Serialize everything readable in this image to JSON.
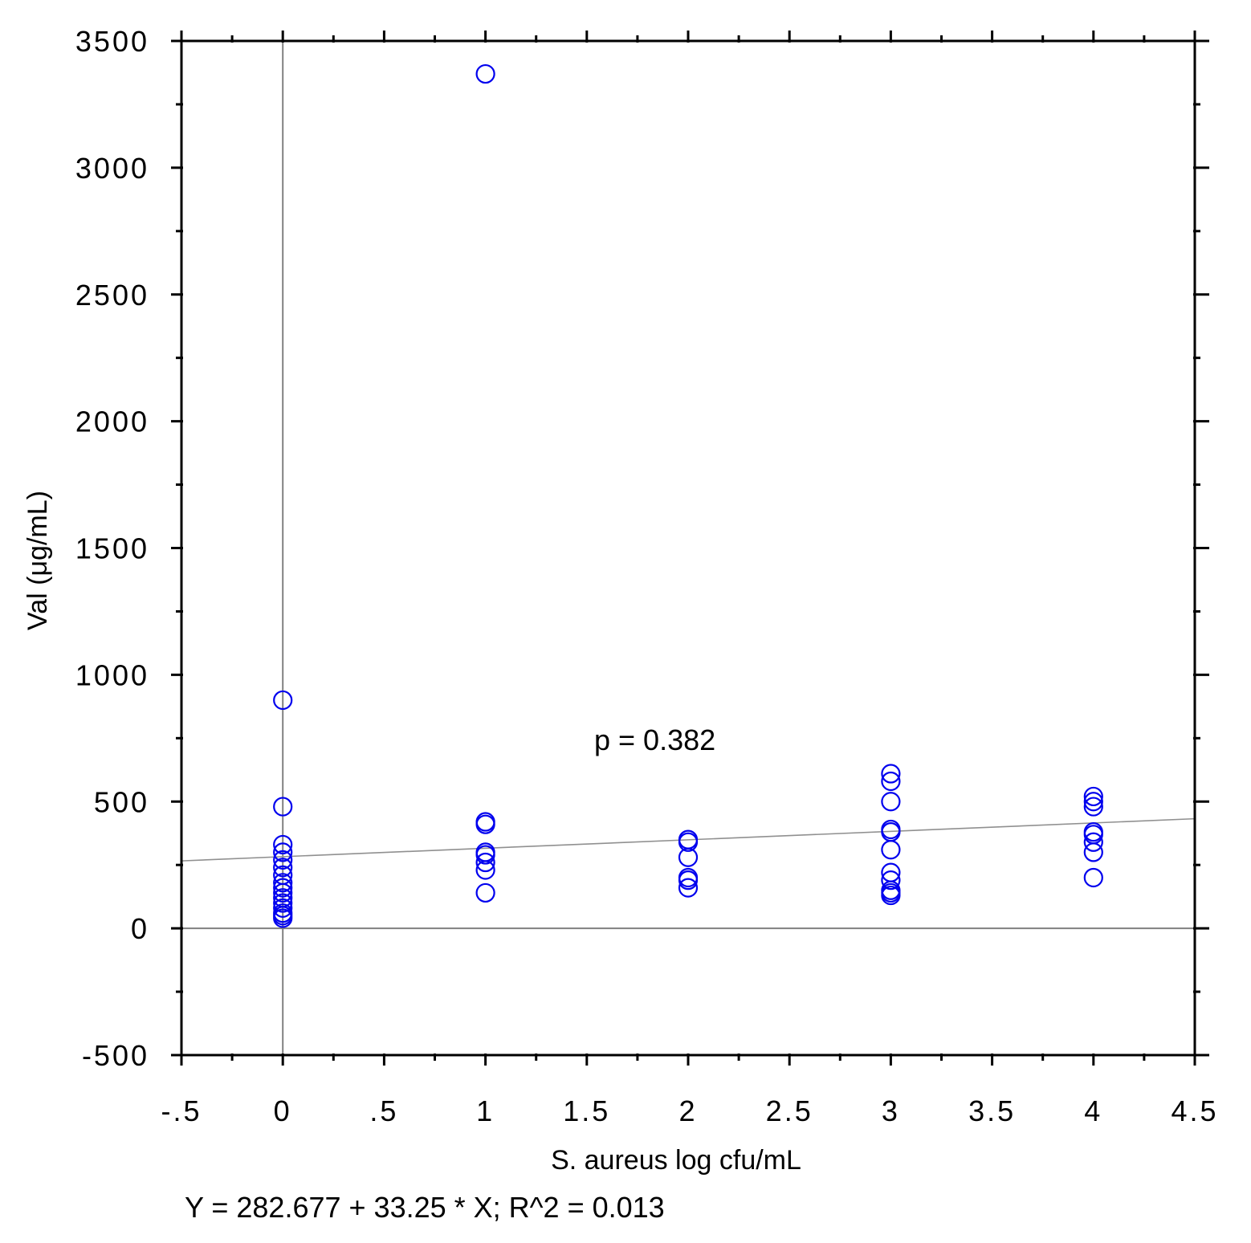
{
  "chart_data": {
    "type": "scatter",
    "xlabel": "S. aureus log cfu/mL",
    "ylabel": "Val (μg/mL)",
    "xlim": [
      -0.5,
      4.5
    ],
    "ylim": [
      -500,
      3500
    ],
    "x_ticks": [
      -0.5,
      0,
      0.5,
      1,
      1.5,
      2,
      2.5,
      3,
      3.5,
      4,
      4.5
    ],
    "x_tick_labels": [
      "-.5",
      "0",
      ".5",
      "1",
      "1.5",
      "2",
      "2.5",
      "3",
      "3.5",
      "4",
      "4.5"
    ],
    "y_ticks": [
      -500,
      0,
      500,
      1000,
      1500,
      2000,
      2500,
      3000,
      3500
    ],
    "y_tick_labels": [
      "-500",
      "0",
      "500",
      "1000",
      "1500",
      "2000",
      "2500",
      "3000",
      "3500"
    ],
    "grid": false,
    "reference_lines": {
      "x": 0,
      "y": 0
    },
    "marker": "open-circle",
    "marker_color": "#0000ee",
    "points": {
      "x": [
        0,
        0,
        0,
        0,
        0,
        0,
        0,
        0,
        0,
        0,
        0,
        0,
        0,
        0,
        0,
        0,
        1,
        1,
        1,
        1,
        1,
        1,
        1,
        1,
        2,
        2,
        2,
        2,
        2,
        2,
        3,
        3,
        3,
        3,
        3,
        3,
        3,
        3,
        3,
        3,
        3,
        4,
        4,
        4,
        4,
        4,
        4,
        4,
        4
      ],
      "y": [
        900,
        480,
        330,
        300,
        270,
        240,
        210,
        180,
        160,
        140,
        120,
        100,
        80,
        60,
        50,
        40,
        3370,
        420,
        410,
        300,
        290,
        260,
        230,
        140,
        350,
        340,
        280,
        200,
        190,
        160,
        610,
        580,
        500,
        390,
        380,
        310,
        220,
        190,
        150,
        140,
        130,
        520,
        500,
        480,
        380,
        370,
        340,
        300,
        200
      ]
    },
    "fit": {
      "intercept": 282.677,
      "slope": 33.25,
      "r2": 0.013,
      "line_color": "#909090"
    },
    "annotations": {
      "p_value": "p = 0.382",
      "equation": "Y = 282.677 + 33.25 * X; R^2 = 0.013"
    }
  }
}
